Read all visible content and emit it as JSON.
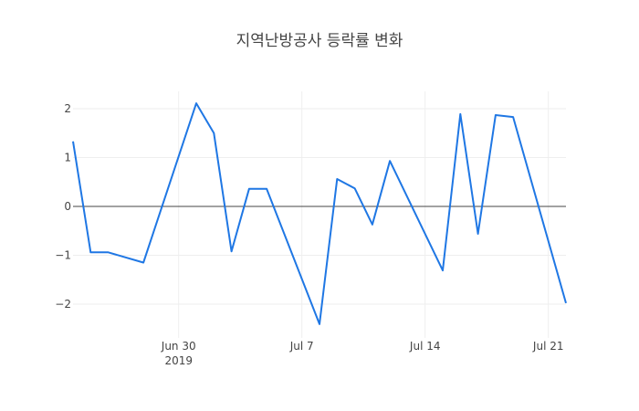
{
  "chart_data": {
    "type": "line",
    "title": "지역난방공사 등락률 변화",
    "xlabel": "",
    "ylabel": "",
    "x": [
      "2019-06-24",
      "2019-06-25",
      "2019-06-26",
      "2019-06-28",
      "2019-07-01",
      "2019-07-02",
      "2019-07-03",
      "2019-07-04",
      "2019-07-05",
      "2019-07-08",
      "2019-07-09",
      "2019-07-10",
      "2019-07-11",
      "2019-07-12",
      "2019-07-15",
      "2019-07-16",
      "2019-07-17",
      "2019-07-18",
      "2019-07-19",
      "2019-07-22"
    ],
    "series": [
      {
        "name": "등락률",
        "color": "#1f77e4",
        "values": [
          1.33,
          -0.94,
          -0.94,
          -1.15,
          2.11,
          1.5,
          -0.92,
          0.36,
          0.36,
          -2.41,
          0.56,
          0.37,
          -0.37,
          0.93,
          -1.31,
          1.89,
          -0.56,
          1.87,
          1.83,
          -1.98
        ]
      }
    ],
    "x_ticks": [
      {
        "date": "2019-06-30",
        "label": "Jun 30",
        "sublabel": "2019"
      },
      {
        "date": "2019-07-07",
        "label": "Jul 7",
        "sublabel": ""
      },
      {
        "date": "2019-07-14",
        "label": "Jul 14",
        "sublabel": ""
      },
      {
        "date": "2019-07-21",
        "label": "Jul 21",
        "sublabel": ""
      }
    ],
    "y_ticks": [
      2,
      1,
      0,
      -1,
      -2
    ],
    "y_tick_labels": [
      "2",
      "1",
      "0",
      "−1",
      "−2"
    ],
    "ylim": [
      -2.6,
      2.35
    ],
    "xlim": [
      "2019-06-24",
      "2019-07-22"
    ],
    "grid": true,
    "zeroline": true,
    "legend": "none"
  }
}
